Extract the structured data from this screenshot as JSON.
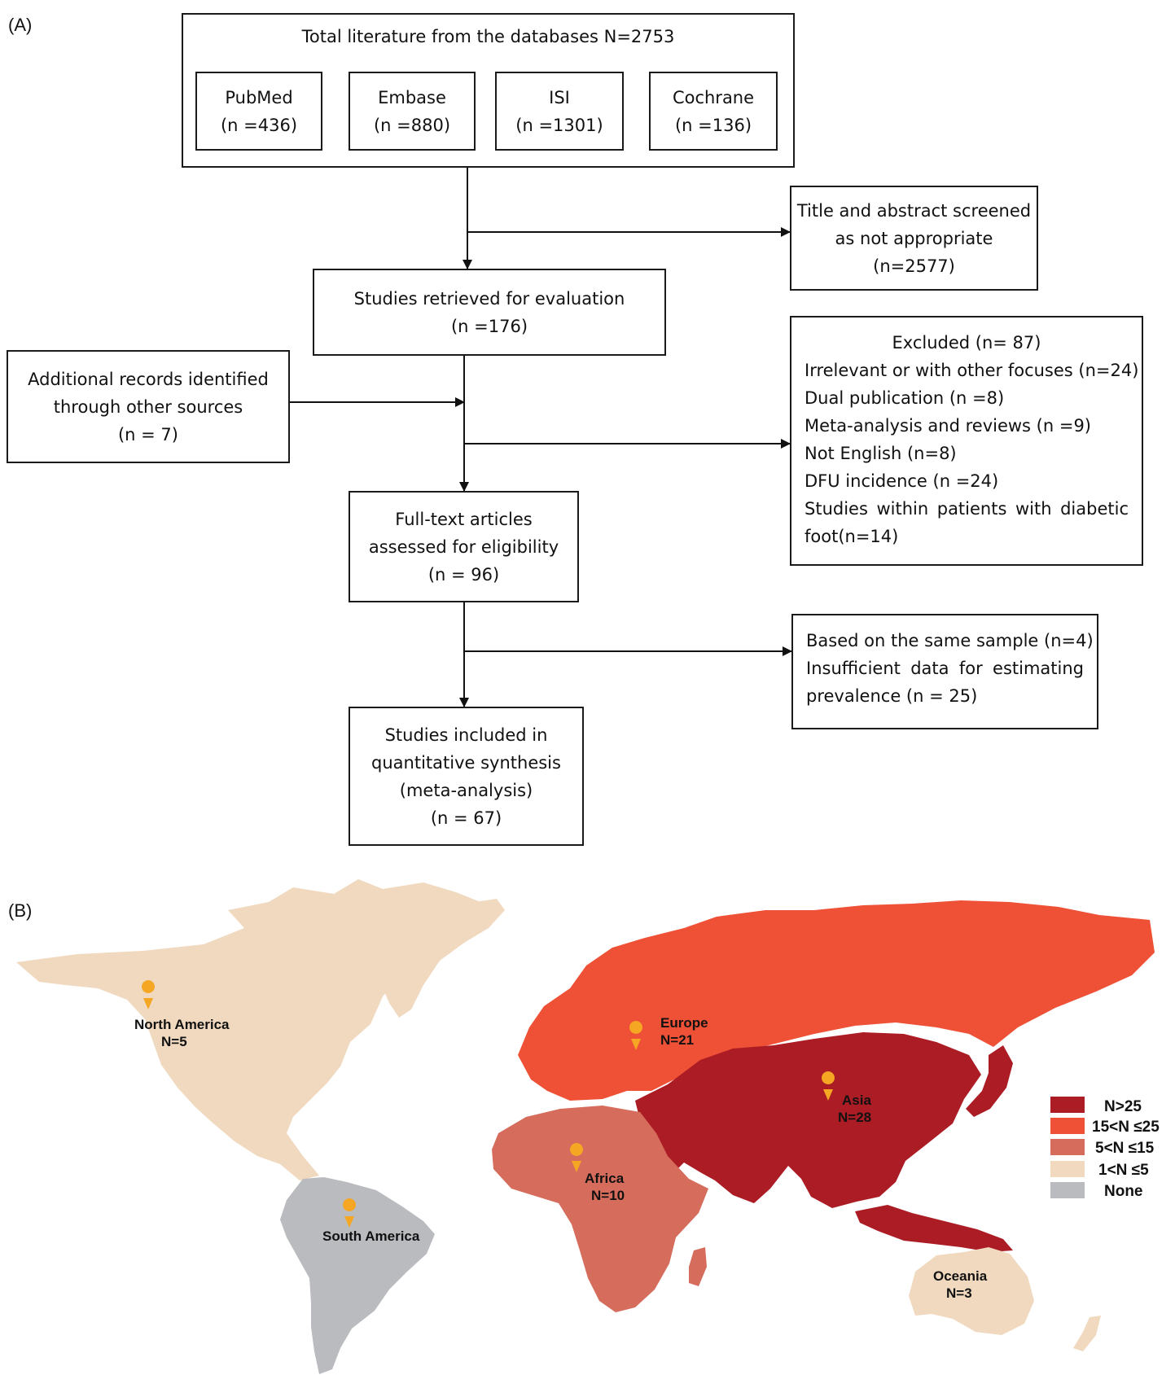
{
  "panel_a_label": "(A)",
  "panel_b_label": "(B)",
  "flow": {
    "total": "Total literature from the databases N=2753",
    "databases": [
      {
        "name": "PubMed",
        "count": "(n =436)"
      },
      {
        "name": "Embase",
        "count": "(n =880)"
      },
      {
        "name": "ISI",
        "count": "(n =1301)"
      },
      {
        "name": "Cochrane",
        "count": "(n =136)"
      }
    ],
    "screened": [
      "Title and abstract screened",
      "as not appropriate",
      "(n=2577)"
    ],
    "retrieved": [
      "Studies retrieved for evaluation",
      "(n =176)"
    ],
    "additional": [
      "Additional records identified",
      "through other sources",
      "(n = 7)"
    ],
    "excluded": {
      "title": "Excluded (n= 87)",
      "items": [
        "Irrelevant or with other focuses (n=24)",
        "Dual publication (n =8)",
        "Meta-analysis and reviews (n =9)",
        "Not English (n=8)",
        "DFU incidence (n =24)"
      ],
      "last_line1": "Studies within patients with diabetic",
      "last_line2": "foot(n=14)"
    },
    "fulltext": [
      "Full-text articles",
      "assessed for eligibility",
      "(n = 96)"
    ],
    "excluded2": {
      "line1": "Based on the same sample (n=4)",
      "line2": "Insufficient data for estimating",
      "line3": "prevalence (n = 25)"
    },
    "included": [
      "Studies included in",
      "quantitative synthesis",
      "(meta-analysis)",
      "(n = 67)"
    ]
  },
  "map": {
    "regions": [
      {
        "name": "North America",
        "count": "N=5",
        "category": "1<N ≤5"
      },
      {
        "name": "Europe",
        "count": "N=21",
        "category": "15<N ≤25"
      },
      {
        "name": "Asia",
        "count": "N=28",
        "category": "N>25"
      },
      {
        "name": "Africa",
        "count": "N=10",
        "category": "5<N ≤15"
      },
      {
        "name": "South America",
        "count": "",
        "category": "None"
      },
      {
        "name": "Oceania",
        "count": "N=3",
        "category": "1<N ≤5"
      }
    ],
    "legend": [
      {
        "label": "N>25",
        "color": "#ab1c25"
      },
      {
        "label": "15<N ≤25",
        "color": "#ef5136"
      },
      {
        "label": "5<N ≤15",
        "color": "#d66c5c"
      },
      {
        "label": "1<N ≤5",
        "color": "#f0d9bf"
      },
      {
        "label": "None",
        "color": "#b9bbbf"
      }
    ],
    "marker_color": "#f5a623"
  }
}
